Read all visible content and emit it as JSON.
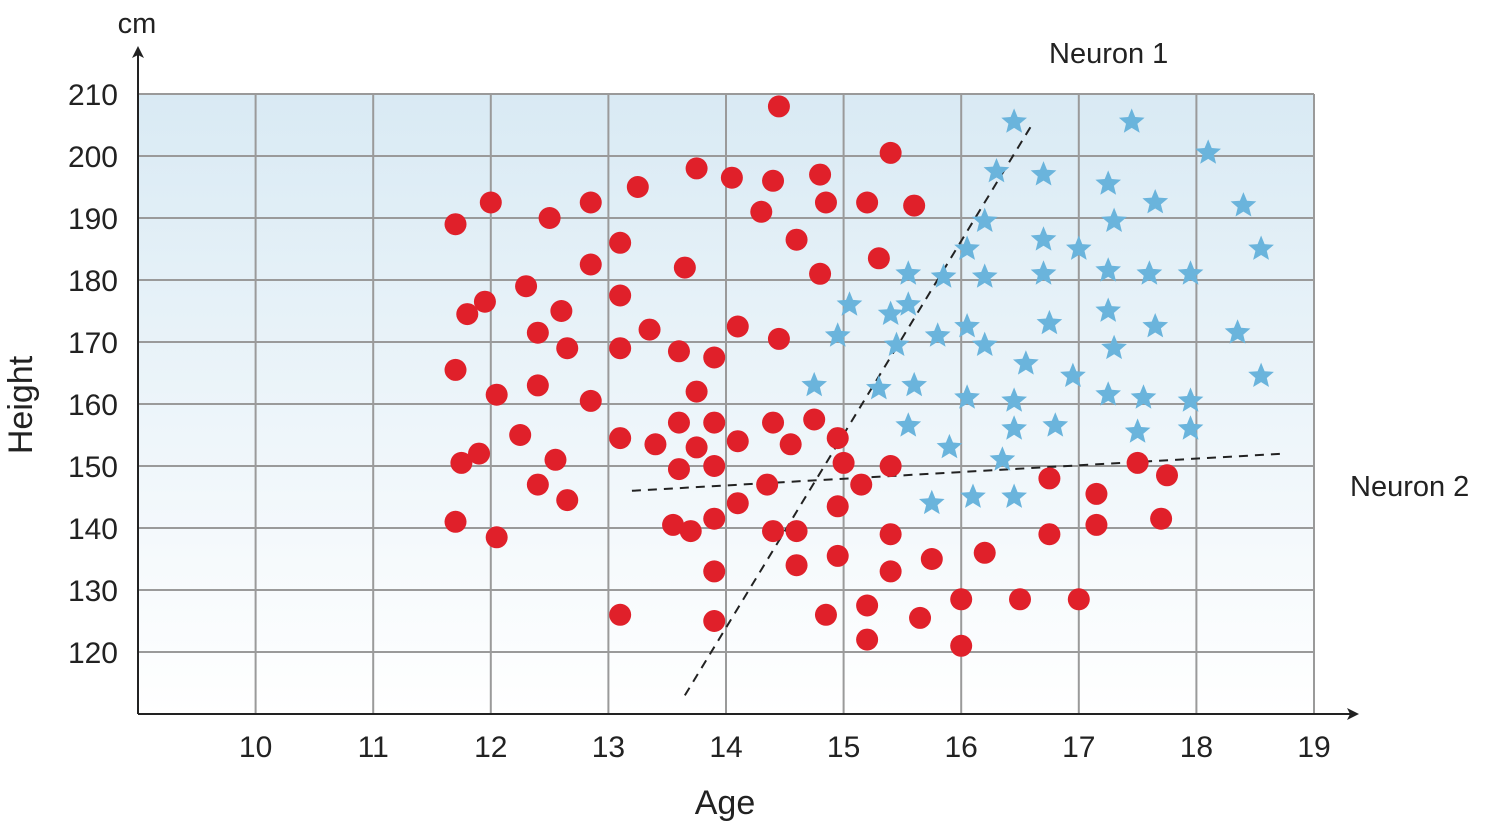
{
  "chart_data": {
    "type": "scatter",
    "xlabel": "Age",
    "ylabel": "Height",
    "y_unit": "cm",
    "xlim": [
      9,
      19
    ],
    "ylim": [
      110,
      210
    ],
    "x_ticks": [
      10,
      11,
      12,
      13,
      14,
      15,
      16,
      17,
      18,
      19
    ],
    "y_ticks": [
      120,
      130,
      140,
      150,
      160,
      170,
      180,
      190,
      200,
      210
    ],
    "grid": true,
    "colors": {
      "circles": "#e0202a",
      "stars": "#6ab4dc",
      "grid": "#9a9a9a",
      "bg_top": "#d9eaf4",
      "bg_bottom": "#ffffff"
    },
    "series": [
      {
        "marker": "circle",
        "points": [
          [
            11.7,
            189
          ],
          [
            12.0,
            192.5
          ],
          [
            12.5,
            190
          ],
          [
            12.85,
            192.5
          ],
          [
            13.25,
            195
          ],
          [
            13.75,
            198
          ],
          [
            14.05,
            196.5
          ],
          [
            14.4,
            196
          ],
          [
            14.45,
            208
          ],
          [
            14.8,
            197
          ],
          [
            14.3,
            191
          ],
          [
            14.85,
            192.5
          ],
          [
            15.2,
            192.5
          ],
          [
            15.4,
            200.5
          ],
          [
            15.6,
            192
          ],
          [
            14.6,
            186.5
          ],
          [
            13.1,
            186
          ],
          [
            12.85,
            182.5
          ],
          [
            13.65,
            182
          ],
          [
            14.8,
            181
          ],
          [
            15.3,
            183.5
          ],
          [
            12.3,
            179
          ],
          [
            11.8,
            174.5
          ],
          [
            11.95,
            176.5
          ],
          [
            12.6,
            175
          ],
          [
            13.1,
            177.5
          ],
          [
            12.4,
            171.5
          ],
          [
            12.65,
            169
          ],
          [
            13.1,
            169
          ],
          [
            13.35,
            172
          ],
          [
            14.1,
            172.5
          ],
          [
            14.45,
            170.5
          ],
          [
            13.6,
            168.5
          ],
          [
            13.9,
            167.5
          ],
          [
            11.7,
            165.5
          ],
          [
            12.05,
            161.5
          ],
          [
            12.4,
            163
          ],
          [
            12.85,
            160.5
          ],
          [
            13.75,
            162
          ],
          [
            12.25,
            155
          ],
          [
            12.55,
            151
          ],
          [
            11.75,
            150.5
          ],
          [
            11.9,
            152
          ],
          [
            12.4,
            147
          ],
          [
            12.65,
            144.5
          ],
          [
            11.7,
            141
          ],
          [
            12.05,
            138.5
          ],
          [
            13.1,
            154.5
          ],
          [
            13.4,
            153.5
          ],
          [
            13.6,
            157
          ],
          [
            13.9,
            157
          ],
          [
            13.6,
            149.5
          ],
          [
            13.75,
            153
          ],
          [
            13.9,
            150
          ],
          [
            14.1,
            154
          ],
          [
            14.4,
            157
          ],
          [
            14.75,
            157.5
          ],
          [
            14.55,
            153.5
          ],
          [
            14.95,
            154.5
          ],
          [
            15.0,
            150.5
          ],
          [
            15.4,
            150
          ],
          [
            15.15,
            147
          ],
          [
            14.35,
            147
          ],
          [
            14.1,
            144
          ],
          [
            13.9,
            141.5
          ],
          [
            14.95,
            143.5
          ],
          [
            13.55,
            140.5
          ],
          [
            13.7,
            139.5
          ],
          [
            14.4,
            139.5
          ],
          [
            14.6,
            139.5
          ],
          [
            15.4,
            139
          ],
          [
            14.95,
            135.5
          ],
          [
            14.6,
            134
          ],
          [
            13.9,
            133
          ],
          [
            15.4,
            133
          ],
          [
            15.75,
            135
          ],
          [
            13.1,
            126
          ],
          [
            13.9,
            125
          ],
          [
            14.85,
            126
          ],
          [
            15.2,
            127.5
          ],
          [
            15.65,
            125.5
          ],
          [
            15.2,
            122
          ],
          [
            16.0,
            121
          ],
          [
            16.0,
            128.5
          ],
          [
            16.2,
            136
          ],
          [
            16.5,
            128.5
          ],
          [
            16.75,
            139
          ],
          [
            16.75,
            148
          ],
          [
            17.0,
            128.5
          ],
          [
            17.15,
            140.5
          ],
          [
            17.15,
            145.5
          ],
          [
            17.5,
            150.5
          ],
          [
            17.75,
            148.5
          ],
          [
            17.7,
            141.5
          ]
        ]
      },
      {
        "marker": "star",
        "points": [
          [
            16.45,
            205.5
          ],
          [
            17.45,
            205.5
          ],
          [
            18.1,
            200.5
          ],
          [
            16.3,
            197.5
          ],
          [
            16.7,
            197
          ],
          [
            17.25,
            195.5
          ],
          [
            17.65,
            192.5
          ],
          [
            18.4,
            192
          ],
          [
            16.2,
            189.5
          ],
          [
            17.3,
            189.5
          ],
          [
            16.05,
            185
          ],
          [
            16.7,
            186.5
          ],
          [
            17.0,
            185
          ],
          [
            18.55,
            185
          ],
          [
            15.55,
            181
          ],
          [
            15.85,
            180.5
          ],
          [
            16.2,
            180.5
          ],
          [
            16.7,
            181
          ],
          [
            17.25,
            181.5
          ],
          [
            17.6,
            181
          ],
          [
            17.95,
            181
          ],
          [
            15.05,
            176
          ],
          [
            15.55,
            176
          ],
          [
            14.95,
            171
          ],
          [
            15.4,
            174.5
          ],
          [
            15.45,
            169.5
          ],
          [
            15.8,
            171
          ],
          [
            16.05,
            172.5
          ],
          [
            16.2,
            169.5
          ],
          [
            16.75,
            173
          ],
          [
            17.25,
            175
          ],
          [
            17.3,
            169
          ],
          [
            17.65,
            172.5
          ],
          [
            18.35,
            171.5
          ],
          [
            14.75,
            163
          ],
          [
            15.3,
            162.5
          ],
          [
            15.6,
            163
          ],
          [
            16.55,
            166.5
          ],
          [
            16.05,
            161
          ],
          [
            16.45,
            160.5
          ],
          [
            16.95,
            164.5
          ],
          [
            17.25,
            161.5
          ],
          [
            17.55,
            161
          ],
          [
            17.95,
            160.5
          ],
          [
            18.55,
            164.5
          ],
          [
            15.55,
            156.5
          ],
          [
            15.9,
            153
          ],
          [
            16.45,
            156
          ],
          [
            16.8,
            156.5
          ],
          [
            17.5,
            155.5
          ],
          [
            17.95,
            156
          ],
          [
            16.35,
            151
          ],
          [
            15.75,
            144
          ],
          [
            16.1,
            145
          ],
          [
            16.45,
            145
          ]
        ]
      }
    ],
    "lines": [
      {
        "label": "Neuron 1",
        "from": [
          13.65,
          113
        ],
        "to": [
          16.6,
          205
        ]
      },
      {
        "label": "Neuron 2",
        "from": [
          13.2,
          146
        ],
        "to": [
          18.75,
          152
        ]
      }
    ]
  }
}
